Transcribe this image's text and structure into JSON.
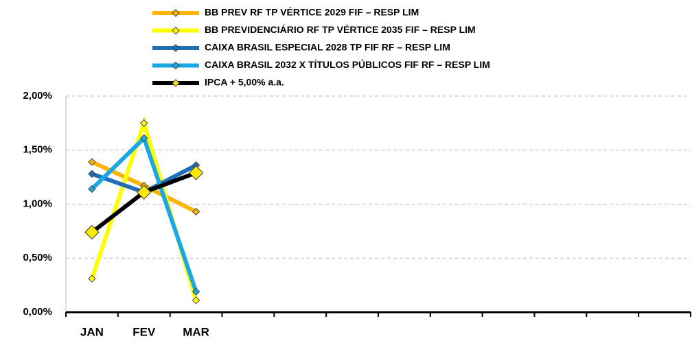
{
  "chart_data": {
    "type": "line",
    "categories": [
      "JAN",
      "FEV",
      "MAR",
      null,
      null,
      null,
      null,
      null,
      null,
      null,
      null,
      null
    ],
    "series": [
      {
        "name": "BB PREV RF TP VÉRTICE 2029 FIF – RESP LIM",
        "color": "#FFB400",
        "values": [
          1.39,
          1.17,
          0.93,
          null,
          null,
          null,
          null,
          null,
          null,
          null,
          null,
          null
        ]
      },
      {
        "name": "BB PREVIDENCIÁRIO RF TP VÉRTICE 2035 FIF – RESP LIM",
        "color": "#FFFF00",
        "values": [
          0.31,
          1.75,
          0.11,
          null,
          null,
          null,
          null,
          null,
          null,
          null,
          null,
          null
        ]
      },
      {
        "name": "CAIXA BRASIL ESPECIAL 2028 TP FIF RF – RESP LIM",
        "color": "#1F6FB8",
        "values": [
          1.28,
          1.11,
          1.36,
          null,
          null,
          null,
          null,
          null,
          null,
          null,
          null,
          null
        ]
      },
      {
        "name": "CAIXA BRASIL 2032 X TÍTULOS PÚBLICOS FIF RF – RESP LIM",
        "color": "#1AA8E2",
        "values": [
          1.14,
          1.61,
          0.19,
          null,
          null,
          null,
          null,
          null,
          null,
          null,
          null,
          null
        ]
      },
      {
        "name": "IPCA + 5,00% a.a.",
        "color": "#000000",
        "values": [
          0.74,
          1.11,
          1.29,
          null,
          null,
          null,
          null,
          null,
          null,
          null,
          null,
          null
        ]
      }
    ],
    "ylim": [
      0,
      2
    ],
    "yticks": [
      {
        "value": 0,
        "label": "0,00%"
      },
      {
        "value": 0.5,
        "label": "0,50%"
      },
      {
        "value": 1,
        "label": "1,00%"
      },
      {
        "value": 1.5,
        "label": "1,50%"
      },
      {
        "value": 2,
        "label": "2,00%"
      }
    ],
    "grid": true,
    "legend": "top"
  }
}
